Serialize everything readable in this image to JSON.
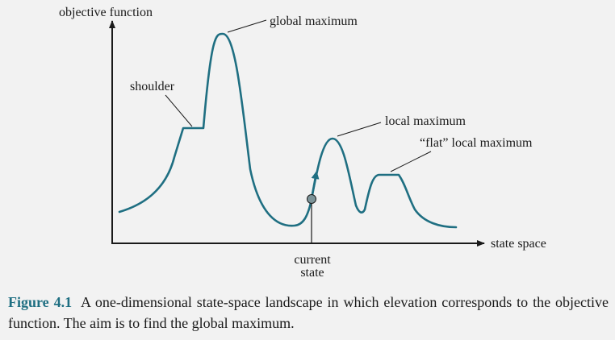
{
  "diagram": {
    "y_axis_label": "objective function",
    "x_axis_label": "state space",
    "labels": {
      "global_maximum": "global maximum",
      "shoulder": "shoulder",
      "local_maximum": "local maximum",
      "flat_local_maximum": "“flat” local maximum",
      "current_state_line1": "current",
      "current_state_line2": "state"
    },
    "colors": {
      "curve": "#1f6f82",
      "axis": "#1a1a1a",
      "current_state_point": "#7d9499",
      "caption_label": "#1f6f82"
    }
  },
  "caption": {
    "label": "Figure 4.1",
    "text": "A one-dimensional state-space landscape in which elevation corresponds to the objective function. The aim is to find the global maximum."
  }
}
